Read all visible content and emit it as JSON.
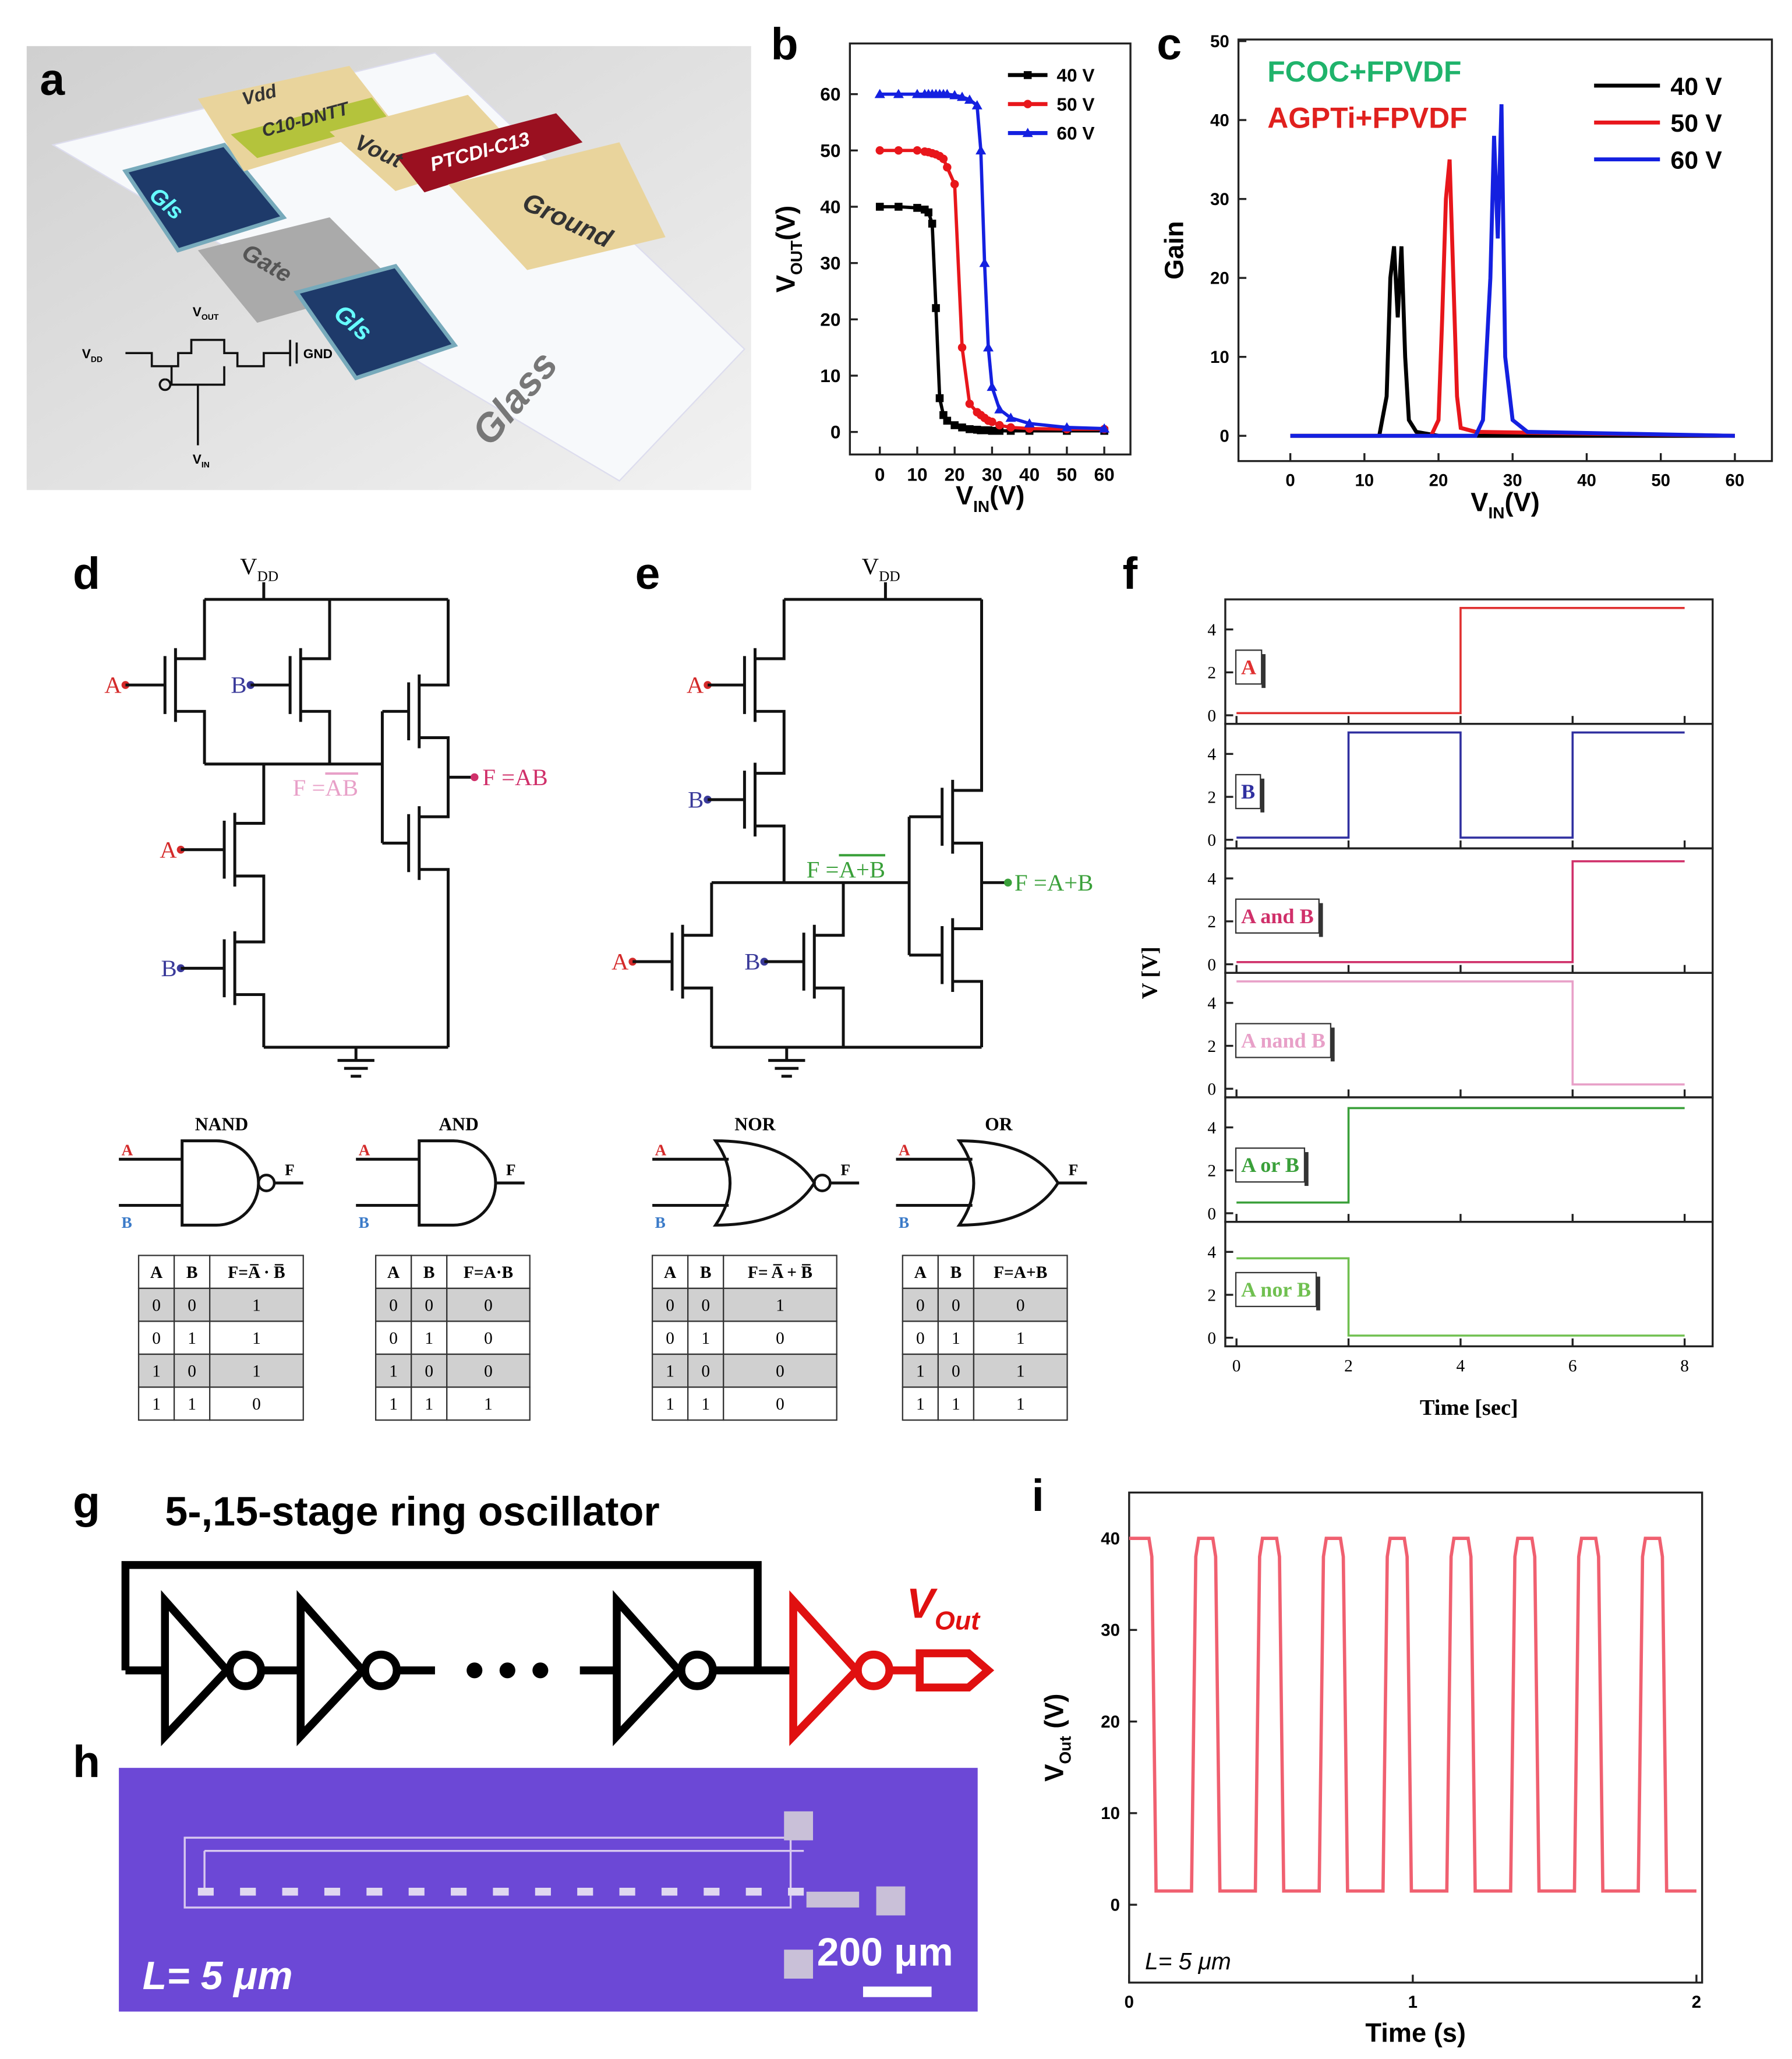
{
  "panel_labels": [
    "a",
    "b",
    "c",
    "d",
    "e",
    "f",
    "g",
    "h",
    "i"
  ],
  "device": {
    "labels": [
      "Vdd",
      "C10-DNTT",
      "Vout",
      "PTCDI-C13",
      "Ground",
      "Gls",
      "Gate",
      "Gls",
      "Glass"
    ],
    "circuit": {
      "vdd": [
        "V",
        "DD"
      ],
      "vout": [
        "V",
        "OUT"
      ],
      "gnd": "GND",
      "vin": [
        "V",
        "IN"
      ]
    }
  },
  "chart_data": [
    {
      "type": "line",
      "xlabel": [
        "V",
        "IN",
        "(V)"
      ],
      "ylabel": [
        "V",
        "OUT",
        "(V)"
      ],
      "xlim": [
        -8,
        67
      ],
      "ylim": [
        -4,
        69
      ],
      "xticks": [
        0,
        10,
        20,
        30,
        40,
        50,
        60
      ],
      "yticks": [
        0,
        10,
        20,
        30,
        40,
        50,
        60
      ],
      "legend": "upper right",
      "x": [
        0,
        5,
        10,
        12,
        13,
        14,
        15,
        16,
        17,
        18,
        20,
        22,
        24,
        26,
        27,
        28,
        29,
        30,
        32,
        35,
        40,
        50,
        60
      ],
      "series": [
        {
          "name": "40 V",
          "color": "#000000",
          "marker": "square",
          "values": [
            40,
            40,
            39.8,
            39.5,
            39,
            37,
            22,
            6,
            3,
            2,
            1.2,
            0.8,
            0.5,
            0.4,
            0.3,
            0.3,
            0.3,
            0.2,
            0.2,
            0.2,
            0.2,
            0.2,
            0.2
          ]
        },
        {
          "name": "50 V",
          "color": "#e8161b",
          "marker": "circle",
          "values": [
            50,
            50,
            50,
            49.8,
            49.7,
            49.5,
            49.3,
            49,
            48.5,
            47,
            44,
            15,
            5,
            3.5,
            3,
            2.5,
            2,
            1.8,
            1.2,
            0.8,
            0.6,
            0.5,
            0.5
          ]
        },
        {
          "name": "60 V",
          "color": "#1420e0",
          "marker": "triangle",
          "values": [
            60,
            60,
            60,
            60,
            60,
            60,
            60,
            60,
            60,
            60,
            59.8,
            59.5,
            59,
            58,
            50,
            30,
            15,
            8,
            4,
            2.5,
            1.5,
            0.8,
            0.6
          ]
        }
      ]
    },
    {
      "type": "line",
      "xlabel": [
        "V",
        "IN",
        "(V)"
      ],
      "ylabel": "Gain",
      "xlim": [
        -7,
        65
      ],
      "ylim": [
        -3.2,
        50.2
      ],
      "xticks": [
        0,
        10,
        20,
        30,
        40,
        50,
        60
      ],
      "yticks": [
        0,
        10,
        20,
        30,
        40,
        50
      ],
      "legend": "upper right",
      "annotations": [
        {
          "text": "FCOC+FPVDF",
          "color": "#1fb36b"
        },
        {
          "text": "AGPTi+FPVDF",
          "color": "#e0201e"
        }
      ],
      "series": [
        {
          "name": "40 V",
          "color": "#000000",
          "x": [
            0,
            12,
            13,
            13.5,
            14,
            14.5,
            15,
            15.5,
            16,
            17,
            20,
            60
          ],
          "values": [
            0,
            0,
            5,
            20,
            24,
            15,
            24,
            10,
            2,
            0.5,
            0,
            0
          ]
        },
        {
          "name": "50 V",
          "color": "#e8161b",
          "x": [
            0,
            19,
            20,
            20.5,
            21,
            21.5,
            22,
            22.5,
            23,
            25,
            60
          ],
          "values": [
            0,
            0,
            2,
            15,
            30,
            35,
            20,
            5,
            1,
            0.5,
            0
          ]
        },
        {
          "name": "60 V",
          "color": "#1420e0",
          "x": [
            0,
            25,
            26,
            27,
            27.5,
            28,
            28.5,
            29,
            30,
            32,
            60
          ],
          "values": [
            0,
            0,
            2,
            20,
            38,
            25,
            42,
            10,
            2,
            0.5,
            0
          ]
        }
      ]
    },
    {
      "type": "step",
      "xlabel": "Time [sec]",
      "ylabel": "V [V]",
      "xlim": [
        -0.2,
        8.5
      ],
      "ylim": [
        -0.4,
        5.4
      ],
      "xticks": [
        0,
        2,
        4,
        6,
        8
      ],
      "yticks": [
        0,
        2,
        4
      ],
      "series": [
        {
          "name": "A",
          "color": "#e03030",
          "x": [
            0,
            4,
            4,
            8
          ],
          "values": [
            0.1,
            0.1,
            5,
            5
          ]
        },
        {
          "name": "B",
          "color": "#3030a0",
          "x": [
            0,
            2,
            2,
            4,
            4,
            6,
            6,
            8
          ],
          "values": [
            0.1,
            0.1,
            5,
            5,
            0.1,
            0.1,
            5,
            5
          ]
        },
        {
          "name": "A and B",
          "color": "#d0306a",
          "x": [
            0,
            6,
            6,
            8
          ],
          "values": [
            0.1,
            0.1,
            4.8,
            4.8
          ]
        },
        {
          "name": "A nand B",
          "color": "#e8a0c8",
          "x": [
            0,
            6,
            6,
            8
          ],
          "values": [
            5,
            5,
            0.2,
            0.2
          ]
        },
        {
          "name": "A or B",
          "color": "#3aa03a",
          "x": [
            0,
            2,
            2,
            8
          ],
          "values": [
            0.5,
            0.5,
            4.9,
            4.9
          ]
        },
        {
          "name": "A nor B",
          "color": "#70c050",
          "x": [
            0,
            2,
            2,
            8
          ],
          "values": [
            3.7,
            3.7,
            0.1,
            0.1
          ]
        }
      ]
    },
    {
      "type": "line",
      "xlabel": "Time (s)",
      "ylabel": [
        "V",
        "Out",
        " (V)"
      ],
      "xlim": [
        0,
        2.02
      ],
      "ylim": [
        -8.5,
        45
      ],
      "xticks": [
        0,
        1,
        2
      ],
      "yticks": [
        0,
        10,
        20,
        30,
        40
      ],
      "annotation": "L= 5 μm",
      "color": "#f06070",
      "x": [
        0,
        0.07,
        0.08,
        0.095,
        0.22,
        0.235,
        0.245,
        0.295,
        0.305,
        0.32,
        0.445,
        0.46,
        0.47,
        0.52,
        0.53,
        0.545,
        0.67,
        0.685,
        0.695,
        0.745,
        0.755,
        0.77,
        0.895,
        0.91,
        0.92,
        0.97,
        0.98,
        0.995,
        1.12,
        1.135,
        1.145,
        1.195,
        1.205,
        1.22,
        1.345,
        1.36,
        1.37,
        1.42,
        1.43,
        1.445,
        1.57,
        1.585,
        1.595,
        1.645,
        1.655,
        1.67,
        1.795,
        1.81,
        1.82,
        1.87,
        1.88,
        1.895,
        2
      ],
      "values": [
        40,
        40,
        38,
        1.5,
        1.5,
        38,
        40,
        40,
        38,
        1.5,
        1.5,
        38,
        40,
        40,
        38,
        1.5,
        1.5,
        38,
        40,
        40,
        38,
        1.5,
        1.5,
        38,
        40,
        40,
        38,
        1.5,
        1.5,
        38,
        40,
        40,
        38,
        1.5,
        1.5,
        38,
        40,
        40,
        38,
        1.5,
        1.5,
        38,
        40,
        40,
        38,
        1.5,
        1.5,
        38,
        40,
        40,
        38,
        1.5,
        1.5
      ]
    }
  ],
  "logic_circuits": [
    {
      "vdd": [
        "V",
        "DD"
      ],
      "inputs": [
        "A",
        "B",
        "A",
        "B"
      ],
      "node_label": [
        "F =",
        "AB"
      ],
      "output": "F =AB"
    },
    {
      "vdd": [
        "V",
        "DD"
      ],
      "inputs": [
        "A",
        "B",
        "A",
        "B"
      ],
      "node_label": [
        "F =",
        "A+B"
      ],
      "output": "F =A+B"
    }
  ],
  "gates": [
    {
      "name": "NAND",
      "inputs": [
        "A",
        "B"
      ],
      "output": "F",
      "table": {
        "header": [
          "A",
          "B",
          "F=A̅ · B̅"
        ],
        "rows": [
          [
            0,
            0,
            1
          ],
          [
            0,
            1,
            1
          ],
          [
            1,
            0,
            1
          ],
          [
            1,
            1,
            0
          ]
        ]
      }
    },
    {
      "name": "AND",
      "inputs": [
        "A",
        "B"
      ],
      "output": "F",
      "table": {
        "header": [
          "A",
          "B",
          "F=A·B"
        ],
        "rows": [
          [
            0,
            0,
            0
          ],
          [
            0,
            1,
            0
          ],
          [
            1,
            0,
            0
          ],
          [
            1,
            1,
            1
          ]
        ]
      }
    },
    {
      "name": "NOR",
      "inputs": [
        "A",
        "B"
      ],
      "output": "F",
      "table": {
        "header": [
          "A",
          "B",
          "F= A̅ + B̅"
        ],
        "rows": [
          [
            0,
            0,
            1
          ],
          [
            0,
            1,
            0
          ],
          [
            1,
            0,
            0
          ],
          [
            1,
            1,
            0
          ]
        ]
      }
    },
    {
      "name": "OR",
      "inputs": [
        "A",
        "B"
      ],
      "output": "F",
      "table": {
        "header": [
          "A",
          "B",
          "F=A+B"
        ],
        "rows": [
          [
            0,
            0,
            0
          ],
          [
            0,
            1,
            1
          ],
          [
            1,
            0,
            1
          ],
          [
            1,
            1,
            1
          ]
        ]
      }
    }
  ],
  "ring_oscillator": {
    "title": "5-,15-stage ring oscillator",
    "output": [
      "V",
      "Out"
    ]
  },
  "micrograph": {
    "length": "L= 5 μm",
    "scale": "200 μm"
  }
}
